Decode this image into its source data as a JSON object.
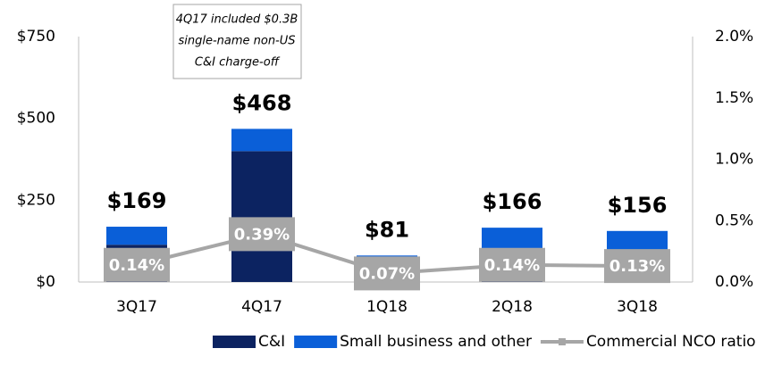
{
  "chart_data": {
    "type": "bar",
    "categories": [
      "3Q17",
      "4Q17",
      "1Q18",
      "2Q18",
      "3Q18"
    ],
    "series": [
      {
        "name": "C&I",
        "color": "#0c2361",
        "values": [
          114,
          400,
          55,
          95,
          90
        ]
      },
      {
        "name": "Small business and other",
        "color": "#0a5fd8",
        "values": [
          55,
          68,
          26,
          71,
          66
        ]
      },
      {
        "name": "Commercial NCO ratio",
        "color": "#a6a6a6",
        "type": "line",
        "axis": "y2",
        "values": [
          0.14,
          0.39,
          0.07,
          0.14,
          0.13
        ],
        "value_labels": [
          "0.14%",
          "0.39%",
          "0.07%",
          "0.14%",
          "0.13%"
        ]
      }
    ],
    "total_labels": [
      "$169",
      "$468",
      "$81",
      "$166",
      "$156"
    ],
    "annotation": [
      "4Q17 included $0.3B",
      "single-name non-US",
      "C&I charge-off"
    ],
    "ylim": [
      0,
      750
    ],
    "yticks": [
      {
        "value": 0,
        "label": "$0"
      },
      {
        "value": 250,
        "label": "$250"
      },
      {
        "value": 500,
        "label": "$500"
      },
      {
        "value": 750,
        "label": "$750"
      }
    ],
    "y2lim": [
      0,
      2.0
    ],
    "y2ticks": [
      {
        "value": 0,
        "label": "0.0%"
      },
      {
        "value": 0.5,
        "label": "0.5%"
      },
      {
        "value": 1.0,
        "label": "1.0%"
      },
      {
        "value": 1.5,
        "label": "1.5%"
      },
      {
        "value": 2.0,
        "label": "2.0%"
      }
    ],
    "stacked": true,
    "legend": "bottom"
  }
}
